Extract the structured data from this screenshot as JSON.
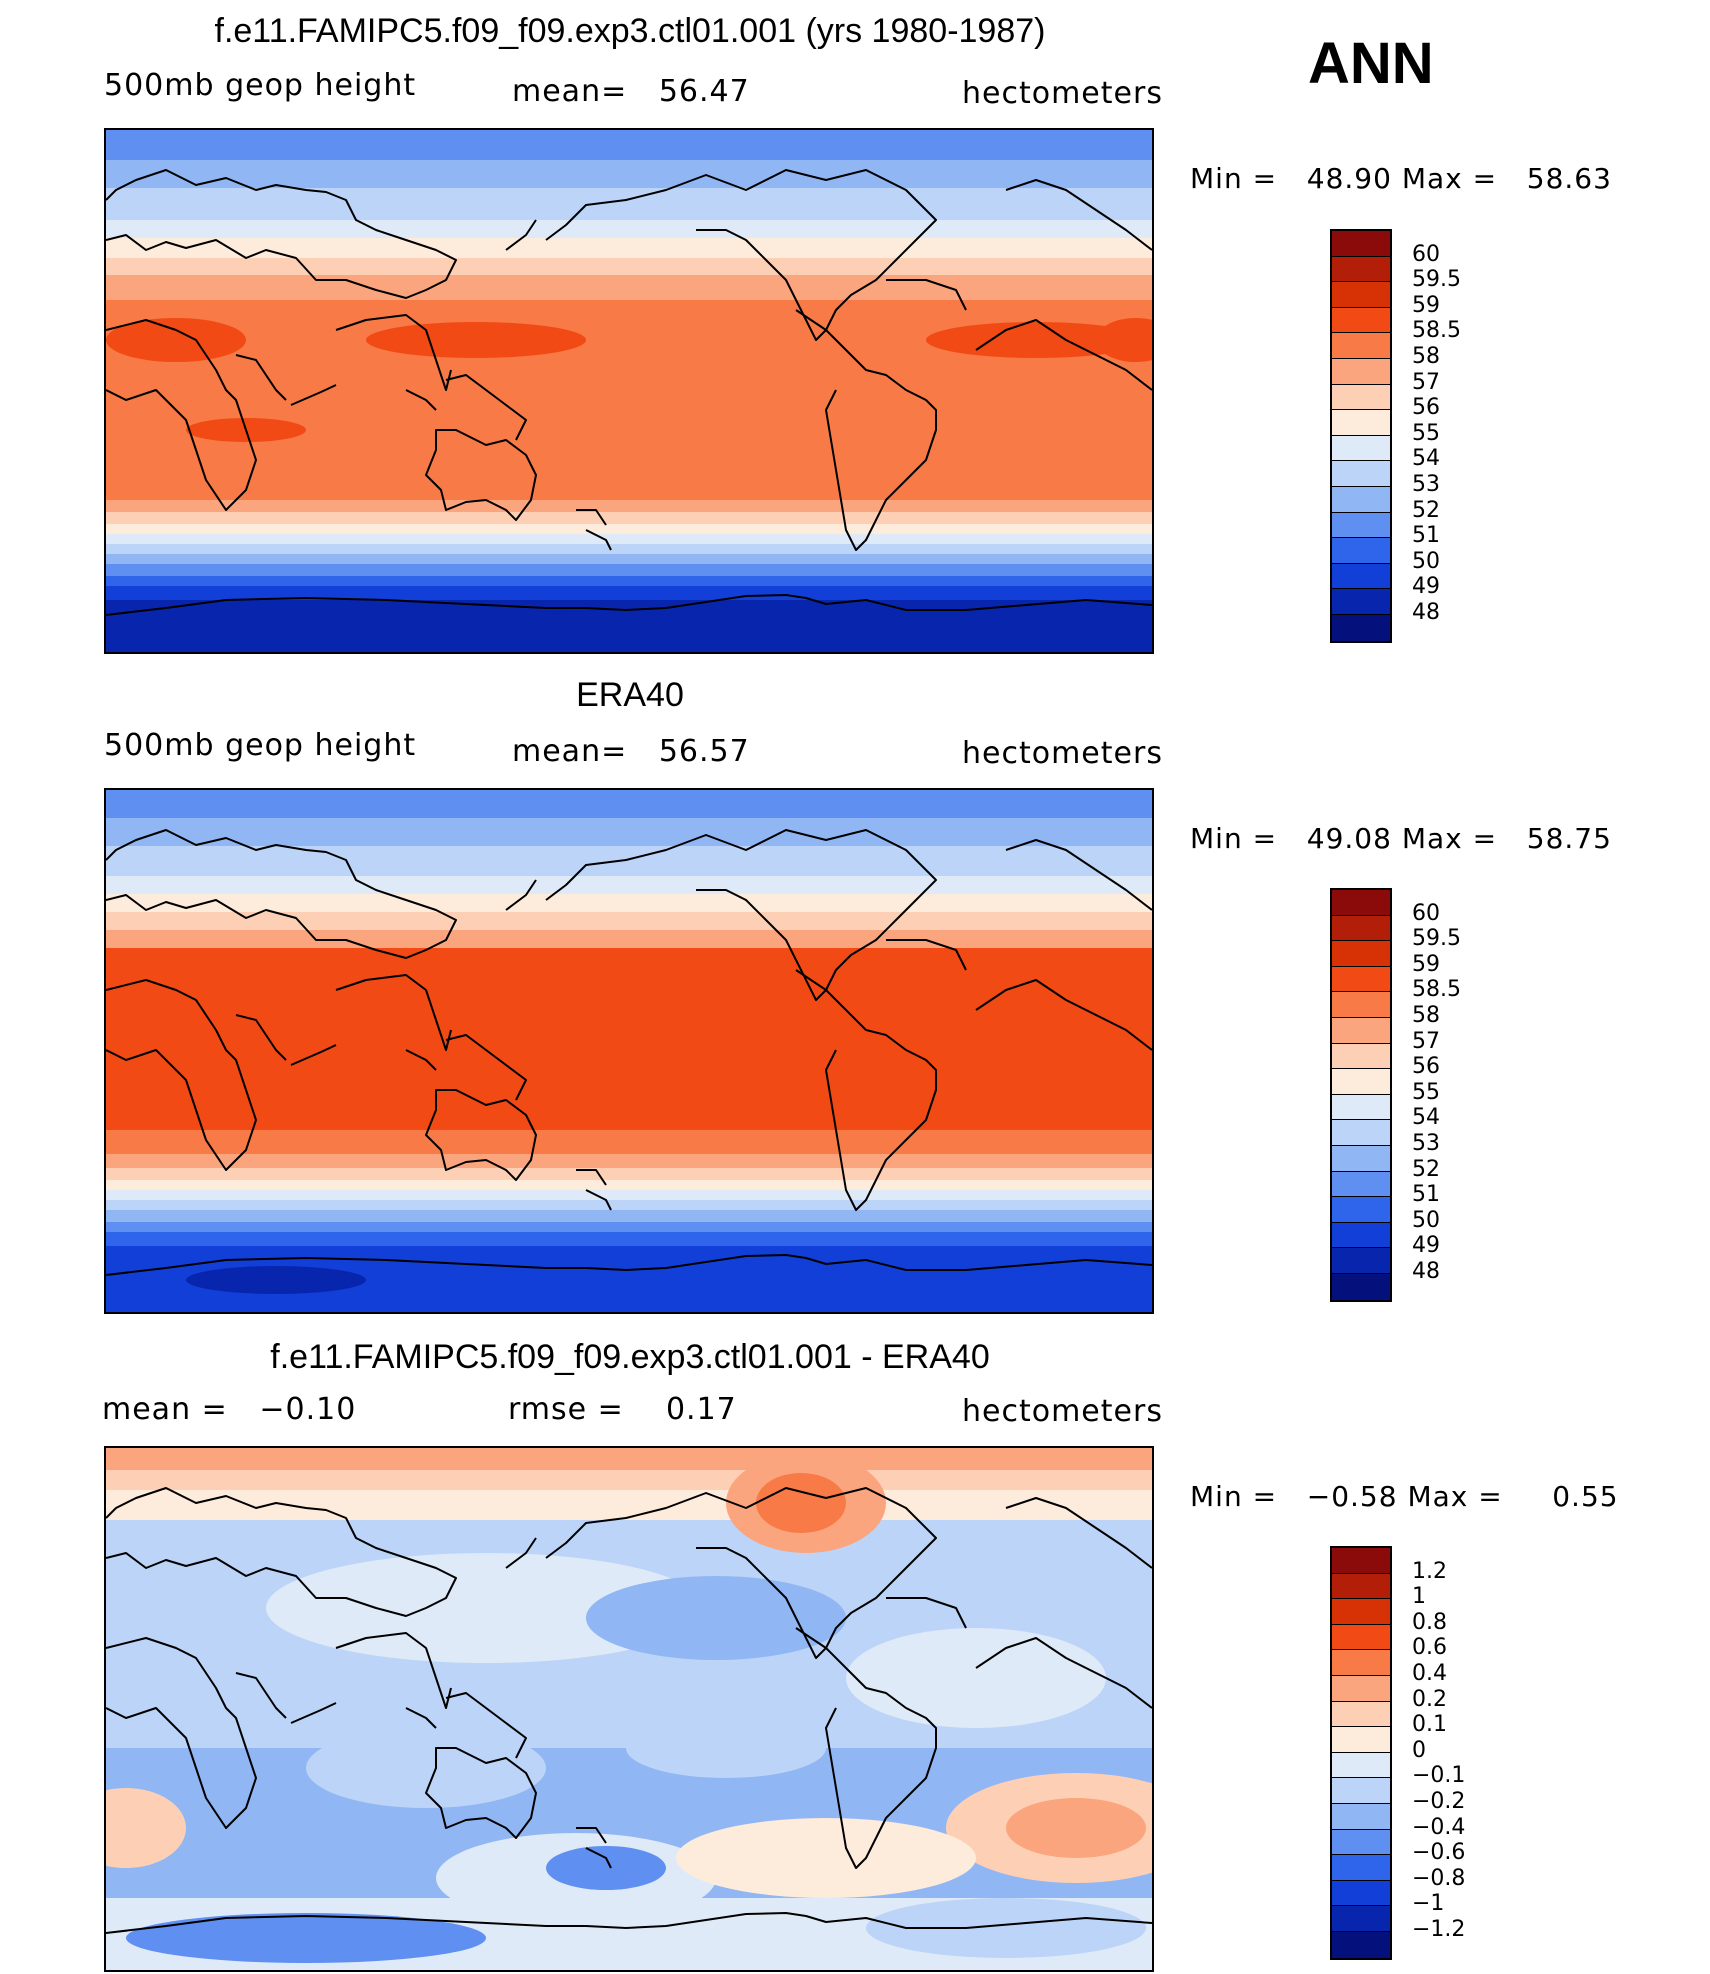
{
  "header": {
    "season": "ANN"
  },
  "panels": [
    {
      "title": "f.e11.FAMIPC5.f09_f09.exp3.ctl01.001 (yrs 1980-1987)",
      "left": "500mb geop height",
      "center_label": "mean=",
      "center_value": "56.47",
      "right": "hectometers",
      "min_label": "Min =",
      "min_value": "48.90",
      "max_label": "Max =",
      "max_value": "58.63",
      "scale": "height",
      "field": "model"
    },
    {
      "title": "ERA40",
      "left": "500mb geop height",
      "center_label": "mean=",
      "center_value": "56.57",
      "right": "hectometers",
      "min_label": "Min =",
      "min_value": "49.08",
      "max_label": "Max =",
      "max_value": "58.75",
      "scale": "height",
      "field": "obs"
    },
    {
      "title": "f.e11.FAMIPC5.f09_f09.exp3.ctl01.001 - ERA40",
      "left_label": "mean =",
      "left_value": "−0.10",
      "center_label": "rmse =",
      "center_value": "0.17",
      "right": "hectometers",
      "min_label": "Min =",
      "min_value": "−0.58",
      "max_label": "Max =",
      "max_value": "0.55",
      "scale": "diff",
      "field": "diff"
    }
  ],
  "colorbars": {
    "height": {
      "labels": [
        "60",
        "59.5",
        "59",
        "58.5",
        "58",
        "57",
        "56",
        "55",
        "54",
        "53",
        "52",
        "51",
        "50",
        "49",
        "48"
      ],
      "colors": [
        "#8b0a0a",
        "#b31e08",
        "#d73206",
        "#f24a14",
        "#f77a47",
        "#fba57e",
        "#fdd0b6",
        "#fdebdc",
        "#dfeaf8",
        "#bcd4f7",
        "#91b6f4",
        "#5f8ff0",
        "#2f65eb",
        "#123fd8",
        "#0825ad",
        "#04117d"
      ]
    },
    "diff": {
      "labels": [
        "1.2",
        "1",
        "0.8",
        "0.6",
        "0.4",
        "0.2",
        "0.1",
        "0",
        "−0.1",
        "−0.2",
        "−0.4",
        "−0.6",
        "−0.8",
        "−1",
        "−1.2"
      ],
      "colors": [
        "#8b0a0a",
        "#b31e08",
        "#d73206",
        "#f24a14",
        "#f77a47",
        "#fba57e",
        "#fdd0b6",
        "#fdebdc",
        "#dfeaf8",
        "#bcd4f7",
        "#91b6f4",
        "#5f8ff0",
        "#2f65eb",
        "#123fd8",
        "#0825ad",
        "#04117d"
      ]
    }
  }
}
